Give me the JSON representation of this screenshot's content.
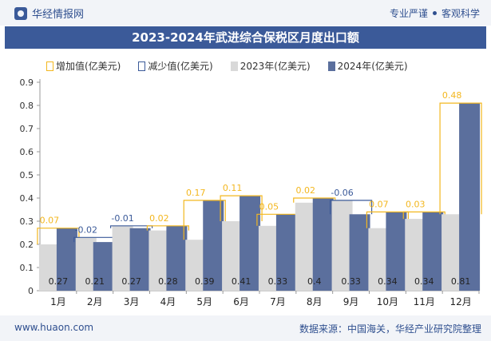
{
  "header": {
    "brand": "华经情报网",
    "tagline_left": "专业严谨",
    "tagline_right": "客观科学"
  },
  "footer": {
    "site": "www.huaon.com",
    "source": "数据来源：中国海关，华经产业研究院整理"
  },
  "colors": {
    "increase": "#f3b71f",
    "decrease": "#3b5a99",
    "y2023": "#d9d9d9",
    "y2024": "#5b6f9d"
  },
  "chart_data": {
    "type": "bar",
    "title": "2023-2024年武进综合保税区月度出口额",
    "categories": [
      "1月",
      "2月",
      "3月",
      "4月",
      "5月",
      "6月",
      "7月",
      "8月",
      "9月",
      "10月",
      "11月",
      "12月"
    ],
    "series": [
      {
        "name": "2023年(亿美元)",
        "values": [
          0.2,
          0.23,
          0.28,
          0.26,
          0.22,
          0.3,
          0.28,
          0.38,
          0.39,
          0.27,
          0.31,
          0.33
        ]
      },
      {
        "name": "2024年(亿美元)",
        "values": [
          0.27,
          0.21,
          0.27,
          0.28,
          0.39,
          0.41,
          0.33,
          0.4,
          0.33,
          0.34,
          0.34,
          0.81
        ]
      }
    ],
    "increase_name": "增加值(亿美元)",
    "decrease_name": "减少值(亿美元)",
    "changes": [
      0.07,
      -0.02,
      -0.01,
      0.02,
      0.17,
      0.11,
      0.05,
      0.02,
      -0.06,
      0.07,
      0.03,
      0.48
    ],
    "change_labels": [
      "0.07",
      "-0.02",
      "-0.01",
      "0.02",
      "0.17",
      "0.11",
      "0.05",
      "0.02",
      "-0.06",
      "0.07",
      "0.03",
      "0.48"
    ],
    "value_labels": [
      "0.27",
      "0.21",
      "0.27",
      "0.28",
      "0.39",
      "0.41",
      "0.33",
      "0.4",
      "0.33",
      "0.34",
      "0.34",
      "0.81"
    ],
    "ylim": [
      0,
      0.9
    ],
    "yticks": [
      "0",
      "0.1",
      "0.2",
      "0.3",
      "0.4",
      "0.5",
      "0.6",
      "0.7",
      "0.8",
      "0.9"
    ],
    "legend_position": "top"
  }
}
